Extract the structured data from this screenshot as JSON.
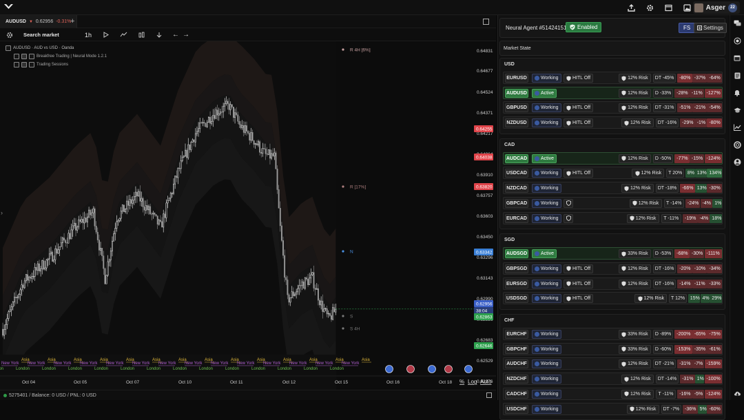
{
  "user": {
    "name": "Asger",
    "badge": "22"
  },
  "tab": {
    "symbol": "AUDUSD",
    "price": "0.62956",
    "change": "-0.31%"
  },
  "toolbar": {
    "search_label": "Search market",
    "timeframe": "1h"
  },
  "legend": {
    "title": "AUDUSD · AUD vs USD · Oanda",
    "indicators": [
      "Breakfree Trading | Neural Mode 1.2.1",
      "Trading Sessions"
    ]
  },
  "status": {
    "text": "5275401 / Balance: 0 USD / PNL: 0 USD"
  },
  "chart": {
    "axis_prices": [
      "0.64831",
      "0.64677",
      "0.64524",
      "0.64371",
      "0.64217",
      "0.64064",
      "0.63910",
      "0.63757",
      "0.63603",
      "0.63450",
      "0.63296",
      "0.63143",
      "0.62990",
      "0.62836",
      "0.62683",
      "0.62529",
      "0.62376"
    ],
    "price_tags": [
      {
        "text": "0.64255",
        "color": "#e0444a"
      },
      {
        "text": "0.64038",
        "color": "#e0444a"
      },
      {
        "text": "0.63820",
        "color": "#e0444a"
      },
      {
        "text": "0.63342",
        "color": "#3a7fd6"
      },
      {
        "text": "0.62956",
        "color": "#3a5fc8"
      },
      {
        "text": "38:04",
        "color": "#2a3f7a"
      },
      {
        "text": "0.62863",
        "color": "#2ea14e"
      },
      {
        "text": "0.62646",
        "color": "#2ea14e"
      }
    ],
    "zone_labels": [
      {
        "text": "R 4H [6%]",
        "color": "#c8a0a0"
      },
      {
        "text": "R [17%]",
        "color": "#b08080"
      },
      {
        "text": "N",
        "color": "#4a90e2"
      },
      {
        "text": "S",
        "color": "#7a7a7a"
      },
      {
        "text": "S 4H",
        "color": "#7a7a7a"
      }
    ],
    "dates": [
      "Oct 04",
      "Oct 05",
      "Oct 07",
      "Oct 10",
      "Oct 11",
      "Oct 12",
      "Oct 15",
      "Oct 16",
      "Oct 18"
    ],
    "sessions": [
      {
        "name": "New York",
        "color": "#b05fd0",
        "row": 0
      },
      {
        "name": "Asia",
        "color": "#e0b83a",
        "row": 1
      },
      {
        "name": "London",
        "color": "#6cbf50",
        "row": 2
      }
    ],
    "bottom_controls": [
      "%",
      "Log",
      "Auto"
    ],
    "candles": []
  },
  "panel": {
    "agent_title": "Neural Agent #51424151",
    "enabled_label": "Enabled",
    "fs_label": "FS",
    "settings_label": "Settings",
    "market_state_label": "Market State",
    "groups": [
      {
        "name": "USD",
        "pairs": [
          {
            "sym": "EURUSD",
            "green": false,
            "state": "Working",
            "hitl": "HITL Off",
            "shield": false,
            "risk": "12% Risk",
            "sig": "DT -45%",
            "p": [
              "-80%",
              "-37%",
              "-64%"
            ],
            "pc": [
              "strongred",
              "red",
              "red"
            ]
          },
          {
            "sym": "AUDUSD",
            "green": true,
            "state": "Active",
            "hitl": "",
            "shield": false,
            "risk": "12% Risk",
            "sig": "D -33%",
            "p": [
              "-28%",
              "-11%",
              "-127%"
            ],
            "pc": [
              "red",
              "red",
              "strongred"
            ]
          },
          {
            "sym": "GBPUSD",
            "green": false,
            "state": "Working",
            "hitl": "HITL Off",
            "shield": false,
            "risk": "12% Risk",
            "sig": "DT -31%",
            "p": [
              "-51%",
              "-21%",
              "-54%"
            ],
            "pc": [
              "red",
              "red",
              "red"
            ]
          },
          {
            "sym": "NZDUSD",
            "green": false,
            "state": "Working",
            "hitl": "HITL Off",
            "shield": false,
            "risk": "12% Risk",
            "sig": "DT -16%",
            "p": [
              "-29%",
              "-1%",
              "-80%"
            ],
            "pc": [
              "red",
              "red",
              "strongred"
            ]
          }
        ]
      },
      {
        "name": "CAD",
        "pairs": [
          {
            "sym": "AUDCAD",
            "green": true,
            "state": "Active",
            "hitl": "",
            "shield": false,
            "risk": "12% Risk",
            "sig": "D -50%",
            "p": [
              "-77%",
              "-15%",
              "-124%"
            ],
            "pc": [
              "strongred",
              "red",
              "strongred"
            ]
          },
          {
            "sym": "USDCAD",
            "green": false,
            "state": "Working",
            "hitl": "HITL Off",
            "shield": false,
            "risk": "12% Risk",
            "sig": "T 20%",
            "p": [
              "8%",
              "13%",
              "134%"
            ],
            "pc": [
              "green",
              "green",
              "stronggreen"
            ]
          },
          {
            "sym": "NZDCAD",
            "green": false,
            "state": "Working",
            "hitl": "",
            "shield": false,
            "risk": "12% Risk",
            "sig": "DT -18%",
            "p": [
              "-66%",
              "13%",
              "-30%"
            ],
            "pc": [
              "strongred",
              "green",
              "red"
            ]
          },
          {
            "sym": "GBPCAD",
            "green": false,
            "state": "Working",
            "hitl": "",
            "shield": true,
            "risk": "12% Risk",
            "sig": "T -14%",
            "p": [
              "-24%",
              "-4%",
              "1%"
            ],
            "pc": [
              "red",
              "red",
              "green"
            ]
          },
          {
            "sym": "EURCAD",
            "green": false,
            "state": "Working",
            "hitl": "",
            "shield": true,
            "risk": "12% Risk",
            "sig": "T -11%",
            "p": [
              "-19%",
              "-4%",
              "18%"
            ],
            "pc": [
              "red",
              "red",
              "green"
            ]
          }
        ]
      },
      {
        "name": "SGD",
        "pairs": [
          {
            "sym": "AUDSGD",
            "green": true,
            "state": "Active",
            "hitl": "",
            "shield": false,
            "risk": "33% Risk",
            "sig": "D -53%",
            "p": [
              "-68%",
              "-30%",
              "-111%"
            ],
            "pc": [
              "strongred",
              "red",
              "strongred"
            ]
          },
          {
            "sym": "GBPSGD",
            "green": false,
            "state": "Working",
            "hitl": "HITL Off",
            "shield": false,
            "risk": "12% Risk",
            "sig": "DT -16%",
            "p": [
              "-20%",
              "-10%",
              "-34%"
            ],
            "pc": [
              "red",
              "red",
              "red"
            ]
          },
          {
            "sym": "EURSGD",
            "green": false,
            "state": "Working",
            "hitl": "HITL Off",
            "shield": false,
            "risk": "12% Risk",
            "sig": "DT -16%",
            "p": [
              "-14%",
              "-11%",
              "-33%"
            ],
            "pc": [
              "red",
              "red",
              "red"
            ]
          },
          {
            "sym": "USDSGD",
            "green": false,
            "state": "Working",
            "hitl": "HITL Off",
            "shield": false,
            "risk": "12% Risk",
            "sig": "T 12%",
            "p": [
              "15%",
              "4%",
              "29%"
            ],
            "pc": [
              "green",
              "green",
              "green"
            ]
          }
        ]
      },
      {
        "name": "CHF",
        "pairs": [
          {
            "sym": "EURCHF",
            "green": false,
            "state": "Working",
            "hitl": "",
            "shield": false,
            "risk": "33% Risk",
            "sig": "D -89%",
            "p": [
              "-200%",
              "-65%",
              "-75%"
            ],
            "pc": [
              "strongred",
              "strongred",
              "strongred"
            ]
          },
          {
            "sym": "GBPCHF",
            "green": false,
            "state": "Working",
            "hitl": "",
            "shield": false,
            "risk": "33% Risk",
            "sig": "D -60%",
            "p": [
              "-153%",
              "-35%",
              "-61%"
            ],
            "pc": [
              "strongred",
              "red",
              "red"
            ]
          },
          {
            "sym": "AUDCHF",
            "green": false,
            "state": "Working",
            "hitl": "",
            "shield": false,
            "risk": "12% Risk",
            "sig": "DT -21%",
            "p": [
              "-31%",
              "-7%",
              "-159%"
            ],
            "pc": [
              "red",
              "red",
              "strongred"
            ]
          },
          {
            "sym": "NZDCHF",
            "green": false,
            "state": "Working",
            "hitl": "",
            "shield": false,
            "risk": "12% Risk",
            "sig": "DT -14%",
            "p": [
              "-31%",
              "1%",
              "-100%"
            ],
            "pc": [
              "red",
              "green",
              "strongred"
            ]
          },
          {
            "sym": "CADCHF",
            "green": false,
            "state": "Working",
            "hitl": "",
            "shield": false,
            "risk": "12% Risk",
            "sig": "T -11%",
            "p": [
              "-16%",
              "-5%",
              "-124%"
            ],
            "pc": [
              "red",
              "red",
              "strongred"
            ]
          },
          {
            "sym": "USDCHF",
            "green": false,
            "state": "Working",
            "hitl": "",
            "shield": false,
            "risk": "12% Risk",
            "sig": "DT -7%",
            "p": [
              "-36%",
              "5%",
              "-60%"
            ],
            "pc": [
              "red",
              "green",
              "red"
            ]
          }
        ]
      }
    ]
  }
}
